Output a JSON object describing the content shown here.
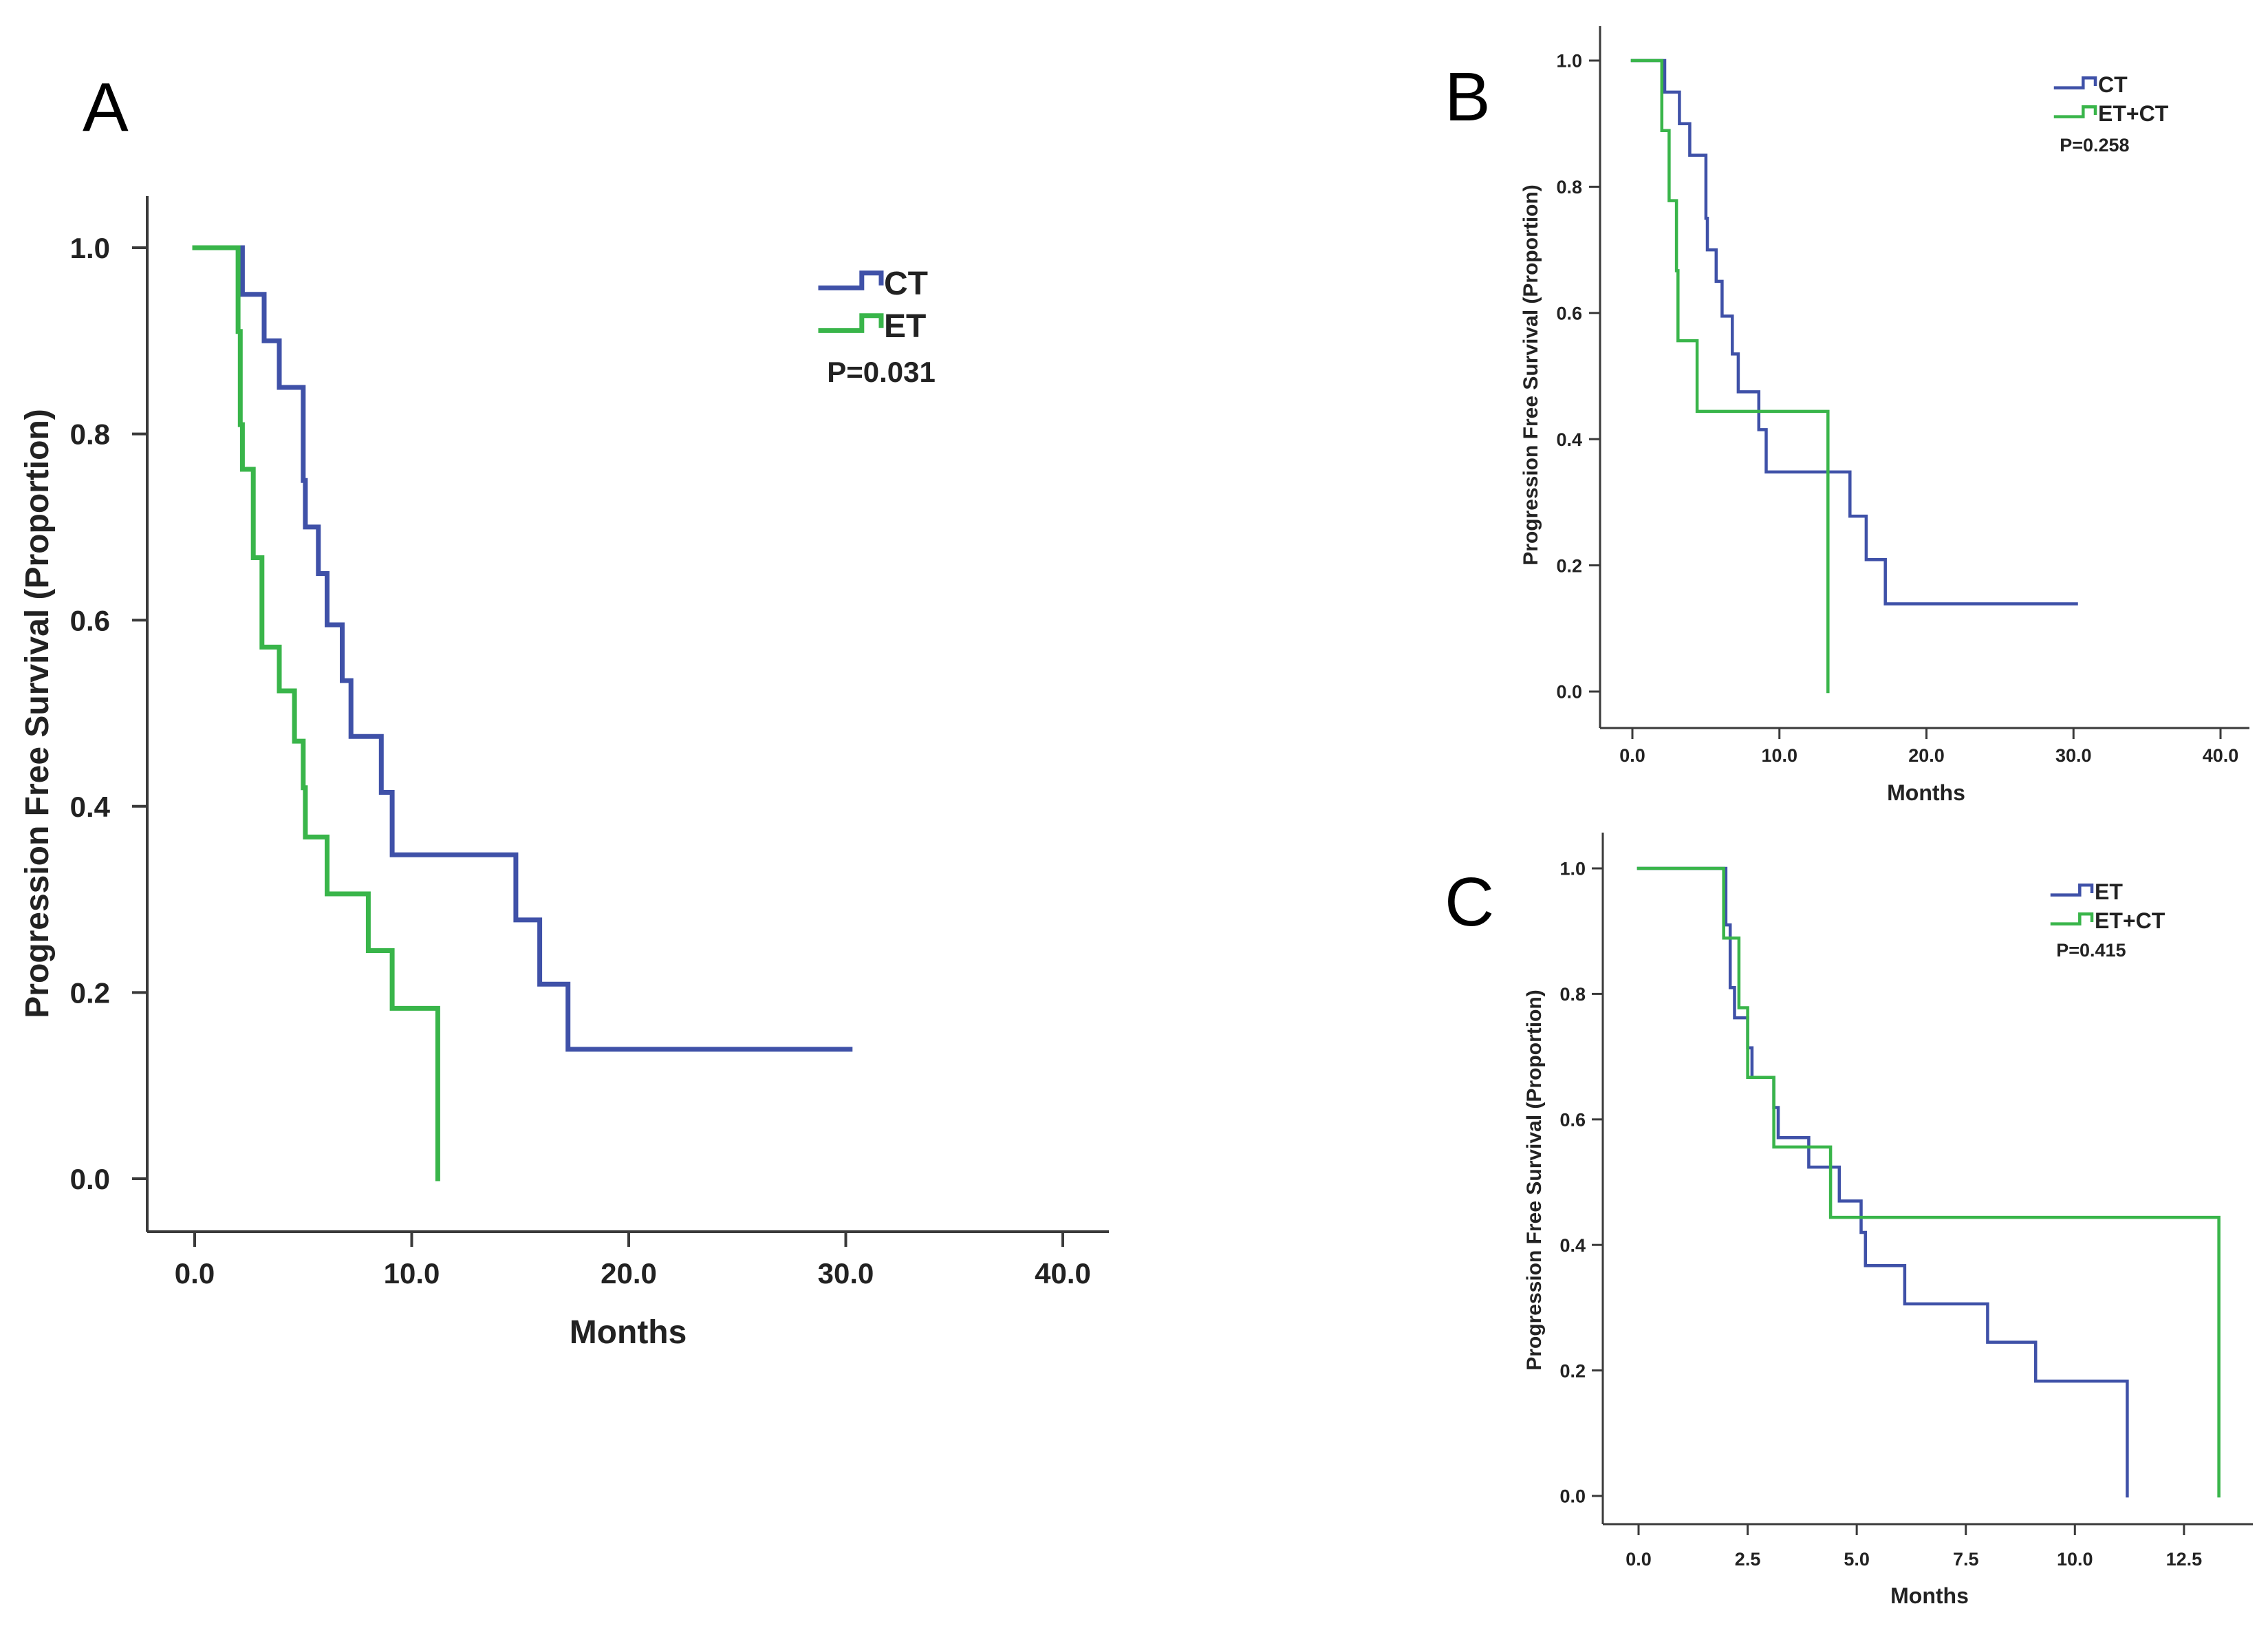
{
  "chart_data": [
    {
      "panel_label": "A",
      "type": "line",
      "subtype": "kaplan-meier step",
      "xlabel": "Months",
      "ylabel": "Progression Free Survival (Proportion)",
      "xlim": [
        0,
        40
      ],
      "ylim": [
        0,
        1
      ],
      "x_ticks": [
        "0.0",
        "10.0",
        "20.0",
        "30.0",
        "40.0"
      ],
      "y_ticks": [
        "0.0",
        "0.2",
        "0.4",
        "0.6",
        "0.8",
        "1.0"
      ],
      "grid": false,
      "legend_position": "top-right",
      "p_value": "P=0.031",
      "series": [
        {
          "name": "CT",
          "color": "#3f51a8",
          "points": [
            [
              0,
              1.0
            ],
            [
              2.2,
              1.0
            ],
            [
              2.2,
              0.95
            ],
            [
              3.2,
              0.95
            ],
            [
              3.2,
              0.9
            ],
            [
              3.9,
              0.9
            ],
            [
              3.9,
              0.85
            ],
            [
              5.0,
              0.85
            ],
            [
              5.0,
              0.75
            ],
            [
              5.1,
              0.75
            ],
            [
              5.1,
              0.7
            ],
            [
              5.7,
              0.7
            ],
            [
              5.7,
              0.65
            ],
            [
              6.1,
              0.65
            ],
            [
              6.1,
              0.595
            ],
            [
              6.8,
              0.595
            ],
            [
              6.8,
              0.535
            ],
            [
              7.2,
              0.535
            ],
            [
              7.2,
              0.475
            ],
            [
              8.6,
              0.475
            ],
            [
              8.6,
              0.415
            ],
            [
              9.1,
              0.415
            ],
            [
              9.1,
              0.348
            ],
            [
              14.8,
              0.348
            ],
            [
              14.8,
              0.278
            ],
            [
              15.9,
              0.278
            ],
            [
              15.9,
              0.209
            ],
            [
              17.2,
              0.209
            ],
            [
              17.2,
              0.139
            ],
            [
              30.2,
              0.139
            ]
          ]
        },
        {
          "name": "ET",
          "color": "#39b54a",
          "points": [
            [
              0,
              1.0
            ],
            [
              2.0,
              1.0
            ],
            [
              2.0,
              0.91
            ],
            [
              2.1,
              0.91
            ],
            [
              2.1,
              0.81
            ],
            [
              2.2,
              0.81
            ],
            [
              2.2,
              0.762
            ],
            [
              2.7,
              0.762
            ],
            [
              2.7,
              0.667
            ],
            [
              3.1,
              0.667
            ],
            [
              3.1,
              0.571
            ],
            [
              3.9,
              0.571
            ],
            [
              3.9,
              0.524
            ],
            [
              4.6,
              0.524
            ],
            [
              4.6,
              0.47
            ],
            [
              5.0,
              0.47
            ],
            [
              5.0,
              0.42
            ],
            [
              5.1,
              0.42
            ],
            [
              5.1,
              0.367
            ],
            [
              6.1,
              0.367
            ],
            [
              6.1,
              0.306
            ],
            [
              8.0,
              0.306
            ],
            [
              8.0,
              0.245
            ],
            [
              9.1,
              0.245
            ],
            [
              9.1,
              0.183
            ],
            [
              11.2,
              0.183
            ],
            [
              11.2,
              0.0
            ]
          ]
        }
      ]
    },
    {
      "panel_label": "B",
      "type": "line",
      "subtype": "kaplan-meier step",
      "xlabel": "Months",
      "ylabel": "Progression Free Survival (Proportion)",
      "xlim": [
        0,
        40
      ],
      "ylim": [
        0,
        1
      ],
      "x_ticks": [
        "0.0",
        "10.0",
        "20.0",
        "30.0",
        "40.0"
      ],
      "y_ticks": [
        "0.0",
        "0.2",
        "0.4",
        "0.6",
        "0.8",
        "1.0"
      ],
      "grid": false,
      "legend_position": "top-right",
      "p_value": "P=0.258",
      "series": [
        {
          "name": "CT",
          "color": "#3f51a8",
          "points": [
            [
              0,
              1.0
            ],
            [
              2.2,
              1.0
            ],
            [
              2.2,
              0.95
            ],
            [
              3.2,
              0.95
            ],
            [
              3.2,
              0.9
            ],
            [
              3.9,
              0.9
            ],
            [
              3.9,
              0.85
            ],
            [
              5.0,
              0.85
            ],
            [
              5.0,
              0.75
            ],
            [
              5.1,
              0.75
            ],
            [
              5.1,
              0.7
            ],
            [
              5.7,
              0.7
            ],
            [
              5.7,
              0.65
            ],
            [
              6.1,
              0.65
            ],
            [
              6.1,
              0.595
            ],
            [
              6.8,
              0.595
            ],
            [
              6.8,
              0.535
            ],
            [
              7.2,
              0.535
            ],
            [
              7.2,
              0.475
            ],
            [
              8.6,
              0.475
            ],
            [
              8.6,
              0.415
            ],
            [
              9.1,
              0.415
            ],
            [
              9.1,
              0.348
            ],
            [
              14.8,
              0.348
            ],
            [
              14.8,
              0.278
            ],
            [
              15.9,
              0.278
            ],
            [
              15.9,
              0.209
            ],
            [
              17.2,
              0.209
            ],
            [
              17.2,
              0.139
            ],
            [
              30.2,
              0.139
            ]
          ]
        },
        {
          "name": "ET+CT",
          "color": "#39b54a",
          "points": [
            [
              0,
              1.0
            ],
            [
              2.0,
              1.0
            ],
            [
              2.0,
              0.889
            ],
            [
              2.5,
              0.889
            ],
            [
              2.5,
              0.778
            ],
            [
              3.0,
              0.778
            ],
            [
              3.0,
              0.667
            ],
            [
              3.1,
              0.667
            ],
            [
              3.1,
              0.556
            ],
            [
              4.4,
              0.556
            ],
            [
              4.4,
              0.444
            ],
            [
              13.3,
              0.444
            ],
            [
              13.3,
              0.0
            ]
          ]
        }
      ]
    },
    {
      "panel_label": "C",
      "type": "line",
      "subtype": "kaplan-meier step",
      "xlabel": "Months",
      "ylabel": "Progression Free Survival (Proportion)",
      "xlim": [
        0,
        14
      ],
      "ylim": [
        0,
        1
      ],
      "x_ticks": [
        "0.0",
        "2.5",
        "5.0",
        "7.5",
        "10.0",
        "12.5"
      ],
      "y_ticks": [
        "0.0",
        "0.2",
        "0.4",
        "0.6",
        "0.8",
        "1.0"
      ],
      "grid": false,
      "legend_position": "top-right",
      "p_value": "P=0.415",
      "series": [
        {
          "name": "ET",
          "color": "#3f51a8",
          "points": [
            [
              0,
              1.0
            ],
            [
              2.0,
              1.0
            ],
            [
              2.0,
              0.91
            ],
            [
              2.1,
              0.91
            ],
            [
              2.1,
              0.81
            ],
            [
              2.2,
              0.81
            ],
            [
              2.2,
              0.762
            ],
            [
              2.5,
              0.762
            ],
            [
              2.5,
              0.714
            ],
            [
              2.6,
              0.714
            ],
            [
              2.6,
              0.667
            ],
            [
              3.1,
              0.667
            ],
            [
              3.1,
              0.619
            ],
            [
              3.2,
              0.619
            ],
            [
              3.2,
              0.571
            ],
            [
              3.9,
              0.571
            ],
            [
              3.9,
              0.524
            ],
            [
              4.6,
              0.524
            ],
            [
              4.6,
              0.47
            ],
            [
              5.1,
              0.47
            ],
            [
              5.1,
              0.42
            ],
            [
              5.2,
              0.42
            ],
            [
              5.2,
              0.367
            ],
            [
              6.1,
              0.367
            ],
            [
              6.1,
              0.306
            ],
            [
              8.0,
              0.306
            ],
            [
              8.0,
              0.245
            ],
            [
              9.1,
              0.245
            ],
            [
              9.1,
              0.183
            ],
            [
              11.2,
              0.183
            ],
            [
              11.2,
              0.0
            ]
          ]
        },
        {
          "name": "ET+CT",
          "color": "#39b54a",
          "points": [
            [
              0,
              1.0
            ],
            [
              1.95,
              1.0
            ],
            [
              1.95,
              0.889
            ],
            [
              2.3,
              0.889
            ],
            [
              2.3,
              0.778
            ],
            [
              2.5,
              0.778
            ],
            [
              2.5,
              0.667
            ],
            [
              3.1,
              0.667
            ],
            [
              3.1,
              0.556
            ],
            [
              4.4,
              0.556
            ],
            [
              4.4,
              0.444
            ],
            [
              13.3,
              0.444
            ],
            [
              13.3,
              0.0
            ]
          ]
        }
      ]
    }
  ]
}
